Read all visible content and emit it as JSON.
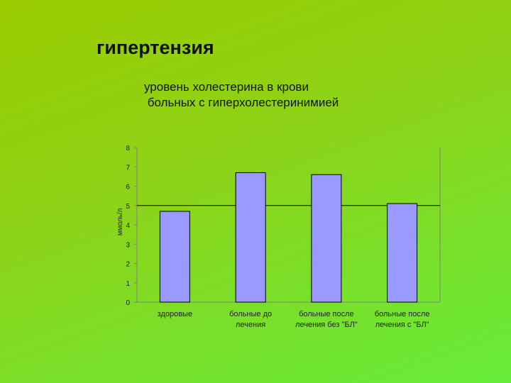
{
  "slide": {
    "title": "гипертензия",
    "subtitle_line1": "уровень холестерина в крови",
    "subtitle_line2": " больных с гиперхолестеринимией"
  },
  "chart_data": {
    "type": "bar",
    "ylabel": "ммоль/л",
    "ylim": [
      0,
      8
    ],
    "yticks": [
      0,
      1,
      2,
      3,
      4,
      5,
      6,
      7,
      8
    ],
    "grid": false,
    "reference_line": 5,
    "categories": [
      [
        "здоровые"
      ],
      [
        "больные до",
        "лечения"
      ],
      [
        "больные после",
        "лечения без \"БЛ\""
      ],
      [
        "больные после",
        "лечения с \"БЛ\""
      ]
    ],
    "values": [
      4.7,
      6.7,
      6.6,
      5.1
    ],
    "colors": {
      "bar": "#9999ff",
      "bar_stroke": "#000000",
      "axis": "#808080"
    }
  }
}
